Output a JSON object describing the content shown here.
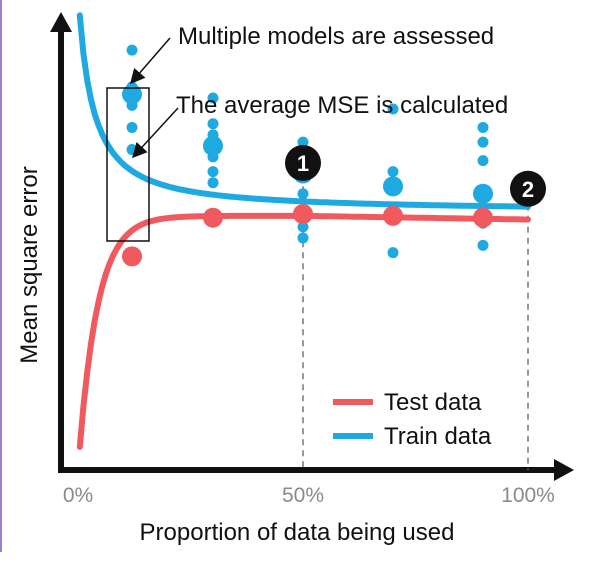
{
  "chart_data": {
    "type": "line",
    "title": "",
    "xlabel": "Proportion of data being used",
    "ylabel": "Mean square error",
    "x_ticks": [
      "0%",
      "50%",
      "100%"
    ],
    "xlim": [
      0,
      100
    ],
    "grid": false,
    "legend_position": "bottom-right",
    "series": [
      {
        "name": "Test data",
        "color": "#f05a5f",
        "points": [
          {
            "x": 12,
            "y": 0.58
          },
          {
            "x": 30,
            "y": 0.685
          },
          {
            "x": 50,
            "y": 0.695
          },
          {
            "x": 70,
            "y": 0.69
          },
          {
            "x": 90,
            "y": 0.685
          }
        ]
      },
      {
        "name": "Train data",
        "color": "#1fa9e1",
        "points": [
          {
            "x": 12,
            "y": 1.02
          },
          {
            "x": 30,
            "y": 0.88
          },
          {
            "x": 50,
            "y": 0.805
          },
          {
            "x": 70,
            "y": 0.77
          },
          {
            "x": 90,
            "y": 0.75
          }
        ],
        "model_samples": [
          {
            "x": 12,
            "values": [
              0.87,
              0.93,
              0.99,
              1.04,
              1.14
            ]
          },
          {
            "x": 30,
            "values": [
              0.78,
              0.81,
              0.85,
              0.91,
              0.94,
              1.01
            ]
          },
          {
            "x": 50,
            "values": [
              0.63,
              0.66,
              0.75,
              0.8,
              0.89
            ]
          },
          {
            "x": 70,
            "values": [
              0.59,
              0.7,
              0.77,
              0.81,
              0.98
            ]
          },
          {
            "x": 90,
            "values": [
              0.61,
              0.67,
              0.76,
              0.84,
              0.89,
              0.93
            ]
          }
        ]
      }
    ],
    "markers": [
      {
        "label": "1",
        "x": 50,
        "y": 0.82
      },
      {
        "label": "2",
        "x": 100,
        "y": 0.75
      }
    ],
    "annotations": [
      {
        "text": "Multiple models are assessed"
      },
      {
        "text": "The average MSE is calculated"
      }
    ]
  }
}
